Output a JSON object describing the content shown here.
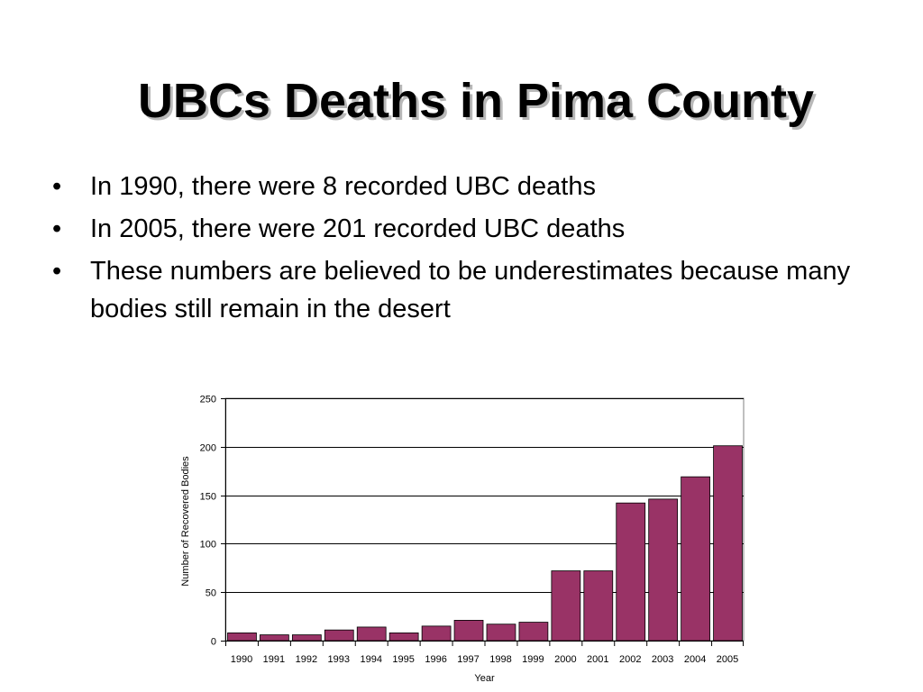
{
  "slide": {
    "title": "UBCs Deaths in Pima County",
    "bullets": [
      "In 1990, there were 8 recorded UBC deaths",
      "In 2005, there were 201 recorded UBC deaths",
      "These numbers are believed to be underestimates because many bodies still remain in the desert"
    ],
    "bullet_glyph": "•"
  },
  "colors": {
    "bar": "#993366",
    "gridline": "#000000",
    "plot_border": "#808080"
  },
  "chart_data": {
    "type": "bar",
    "categories": [
      "1990",
      "1991",
      "1992",
      "1993",
      "1994",
      "1995",
      "1996",
      "1997",
      "1998",
      "1999",
      "2000",
      "2001",
      "2002",
      "2003",
      "2004",
      "2005"
    ],
    "values": [
      8,
      6,
      6,
      11,
      14,
      8,
      15,
      21,
      17,
      19,
      72,
      72,
      142,
      146,
      169,
      201
    ],
    "xlabel": "Year",
    "ylabel": "Number of Recovered Bodies",
    "ylim": [
      0,
      250
    ],
    "yticks": [
      0,
      50,
      100,
      150,
      200,
      250
    ],
    "grid": true,
    "legend": "none"
  }
}
